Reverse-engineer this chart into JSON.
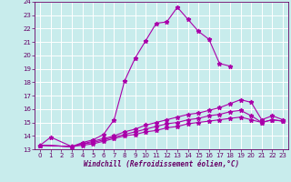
{
  "xlabel": "Windchill (Refroidissement éolien,°C)",
  "bg_color": "#c8ecec",
  "line_color": "#aa00aa",
  "xlim": [
    -0.5,
    23.5
  ],
  "ylim": [
    13,
    24
  ],
  "yticks": [
    13,
    14,
    15,
    16,
    17,
    18,
    19,
    20,
    21,
    22,
    23,
    24
  ],
  "xticks": [
    0,
    1,
    2,
    3,
    4,
    5,
    6,
    7,
    8,
    9,
    10,
    11,
    12,
    13,
    14,
    15,
    16,
    17,
    18,
    19,
    20,
    21,
    22,
    23
  ],
  "series": [
    {
      "x": [
        0,
        1,
        3,
        4,
        5,
        6,
        7,
        8,
        9,
        10,
        11,
        12,
        13,
        14,
        15,
        16,
        17,
        18
      ],
      "y": [
        13.3,
        13.9,
        13.2,
        13.5,
        13.7,
        14.1,
        15.2,
        18.1,
        19.8,
        21.1,
        22.4,
        22.5,
        23.6,
        22.7,
        21.8,
        21.2,
        19.4,
        19.2
      ]
    },
    {
      "x": [
        0,
        3,
        4,
        5,
        6,
        7,
        8,
        9,
        10,
        11,
        12,
        13,
        14,
        15,
        16,
        17,
        18,
        19,
        20,
        21,
        22,
        23
      ],
      "y": [
        13.3,
        13.2,
        13.4,
        13.6,
        13.8,
        14.0,
        14.3,
        14.5,
        14.8,
        15.0,
        15.2,
        15.4,
        15.6,
        15.7,
        15.9,
        16.1,
        16.4,
        16.7,
        16.5,
        15.2,
        15.5,
        15.2
      ]
    },
    {
      "x": [
        0,
        3,
        4,
        5,
        6,
        7,
        8,
        9,
        10,
        11,
        12,
        13,
        14,
        15,
        16,
        17,
        18,
        19,
        20,
        21,
        22,
        23
      ],
      "y": [
        13.3,
        13.2,
        13.4,
        13.5,
        13.7,
        13.9,
        14.1,
        14.3,
        14.5,
        14.7,
        14.9,
        15.0,
        15.2,
        15.3,
        15.5,
        15.6,
        15.8,
        15.9,
        15.5,
        15.0,
        15.2,
        15.1
      ]
    },
    {
      "x": [
        0,
        3,
        4,
        5,
        6,
        7,
        8,
        9,
        10,
        11,
        12,
        13,
        14,
        15,
        16,
        17,
        18,
        19,
        20,
        21,
        22,
        23
      ],
      "y": [
        13.3,
        13.2,
        13.3,
        13.4,
        13.6,
        13.8,
        14.0,
        14.1,
        14.3,
        14.4,
        14.6,
        14.7,
        14.9,
        15.0,
        15.1,
        15.2,
        15.3,
        15.4,
        15.2,
        15.0,
        15.2,
        15.1
      ]
    }
  ]
}
